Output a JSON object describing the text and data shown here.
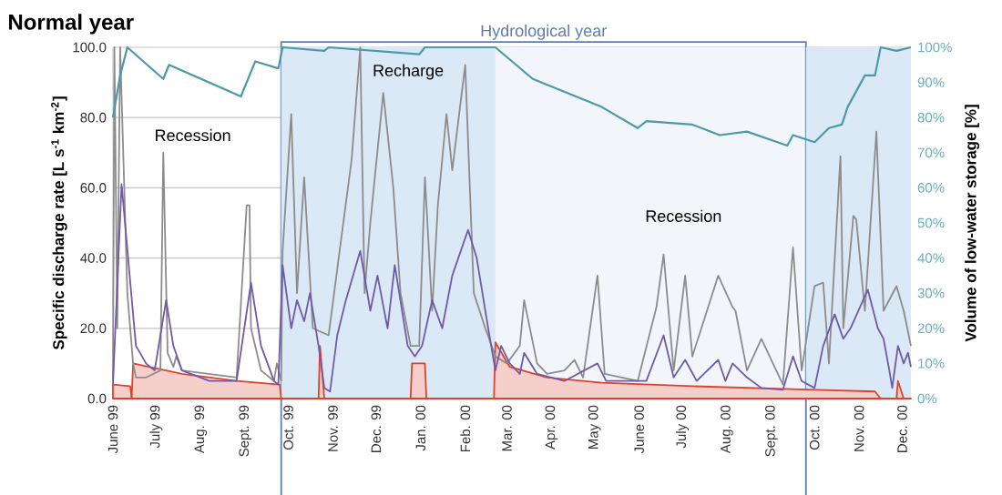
{
  "chart_data": {
    "type": "line",
    "title": "Normal year",
    "ylabel": "Specific discharge rate [L s$^{-1}$ km$^{-2}$]",
    "y2label": "Volume of low-water storage [%]",
    "annotations": [
      "Recession",
      "Recharge",
      "Recession"
    ],
    "xlim": [
      "1999-06-01",
      "2000-12-07"
    ],
    "xticks": [
      {
        "value": "1999-06-01",
        "label": "June 99"
      },
      {
        "value": "1999-07-01",
        "label": "July 99"
      },
      {
        "value": "1999-08-01",
        "label": "Aug. 99"
      },
      {
        "value": "1999-09-01",
        "label": "Sept. 99"
      },
      {
        "value": "1999-10-01",
        "label": "Oct. 99"
      },
      {
        "value": "1999-11-01",
        "label": "Nov. 99"
      },
      {
        "value": "1999-12-01",
        "label": "Dec. 99"
      },
      {
        "value": "2000-01-01",
        "label": "Jan. 00"
      },
      {
        "value": "2000-02-01",
        "label": "Feb. 00"
      },
      {
        "value": "2000-03-01",
        "label": "Mar. 00"
      },
      {
        "value": "2000-04-01",
        "label": "Apr. 00"
      },
      {
        "value": "2000-05-01",
        "label": "May 00"
      },
      {
        "value": "2000-06-01",
        "label": "June 00"
      },
      {
        "value": "2000-07-01",
        "label": "July 00"
      },
      {
        "value": "2000-08-01",
        "label": "Aug. 00"
      },
      {
        "value": "2000-09-01",
        "label": "Sept. 00"
      },
      {
        "value": "2000-10-01",
        "label": "Oct. 00"
      },
      {
        "value": "2000-11-01",
        "label": "Nov. 00"
      },
      {
        "value": "2000-12-01",
        "label": "Dec. 00"
      }
    ],
    "ylim": [
      0,
      100
    ],
    "yticks": [
      {
        "value": 0,
        "label": "0.0"
      },
      {
        "value": 20,
        "label": "20.0"
      },
      {
        "value": 40,
        "label": "40.0"
      },
      {
        "value": 60,
        "label": "60.0"
      },
      {
        "value": 80,
        "label": "80.0"
      },
      {
        "value": 100,
        "label": "100.0"
      }
    ],
    "y2lim": [
      0,
      100
    ],
    "y2ticks": [
      {
        "value": 0,
        "label": "0%"
      },
      {
        "value": 10,
        "label": "10%"
      },
      {
        "value": 20,
        "label": "20%"
      },
      {
        "value": 30,
        "label": "30%"
      },
      {
        "value": 40,
        "label": "40%"
      },
      {
        "value": 50,
        "label": "50%"
      },
      {
        "value": 60,
        "label": "60%"
      },
      {
        "value": 70,
        "label": "70%"
      },
      {
        "value": 80,
        "label": "80%"
      },
      {
        "value": 90,
        "label": "90%"
      },
      {
        "value": 100,
        "label": "100%"
      }
    ],
    "grid": "y",
    "marker": "none",
    "line_style": "solid",
    "bands": [
      {
        "axis": "x",
        "from": "1999-09-26",
        "to": "2000-02-22",
        "color": "#dbe8f5"
      },
      {
        "axis": "x",
        "from": "2000-09-25",
        "to": "2000-12-07",
        "color": "#dbe8f5"
      },
      {
        "axis": "x",
        "from": "1999-09-26",
        "to": "2000-09-25",
        "label": "Hydrological year",
        "color": "#f2f6fb"
      }
    ],
    "series": [
      {
        "type": "area",
        "color": "#e0412b",
        "x": [
          "1999-06-01",
          "1999-06-13",
          "1999-06-14",
          "1999-06-15",
          "1999-07-19",
          "1999-08-26",
          "1999-09-25",
          "1999-09-26",
          "1999-10-22",
          "1999-10-23",
          "1999-10-26",
          "1999-12-25",
          "1999-12-26",
          "2000-01-04",
          "2000-01-05",
          "2000-02-21",
          "2000-02-22",
          "2000-03-03",
          "2000-03-29",
          "2000-05-06",
          "2000-07-08",
          "2000-10-01",
          "2000-11-12",
          "2000-11-16",
          "2000-11-27",
          "2000-11-28",
          "2000-12-02",
          "2000-12-07"
        ],
        "values": [
          4,
          3.5,
          0,
          10,
          7,
          5,
          4,
          0,
          0,
          15,
          0,
          0,
          10,
          10,
          0,
          0,
          16,
          9,
          6,
          4.5,
          3.5,
          2.5,
          2,
          0,
          0,
          5,
          0,
          0
        ]
      },
      {
        "color": "#8c8c8c",
        "x": [
          "1999-06-01",
          "1999-06-02",
          "1999-06-04",
          "1999-06-06",
          "1999-06-11",
          "1999-06-15",
          "1999-06-17",
          "1999-06-24",
          "1999-07-04",
          "1999-07-06",
          "1999-07-09",
          "1999-07-13",
          "1999-07-15",
          "1999-07-19",
          "1999-08-07",
          "1999-08-26",
          "1999-09-02",
          "1999-09-04",
          "1999-09-05",
          "1999-09-12",
          "1999-09-21",
          "1999-09-23",
          "1999-09-26",
          "1999-09-27",
          "1999-10-03",
          "1999-10-07",
          "1999-10-12",
          "1999-10-18",
          "1999-10-29",
          "1999-11-05",
          "1999-11-14",
          "1999-11-20",
          "1999-11-23",
          "1999-11-27",
          "1999-12-06",
          "1999-12-13",
          "1999-12-18",
          "1999-12-25",
          "1999-12-31",
          "2000-01-04",
          "2000-01-09",
          "2000-01-13",
          "2000-01-19",
          "2000-01-23",
          "2000-02-01",
          "2000-02-07",
          "2000-02-15",
          "2000-02-22",
          "2000-03-01",
          "2000-03-10",
          "2000-03-13",
          "2000-03-22",
          "2000-03-29",
          "2000-04-10",
          "2000-04-17",
          "2000-04-23",
          "2000-05-03",
          "2000-05-08",
          "2000-05-31",
          "2000-06-13",
          "2000-06-18",
          "2000-06-25",
          "2000-07-03",
          "2000-07-08",
          "2000-07-26",
          "2000-08-05",
          "2000-08-07",
          "2000-08-15",
          "2000-08-25",
          "2000-09-09",
          "2000-09-16",
          "2000-09-22",
          "2000-10-01",
          "2000-10-07",
          "2000-10-11",
          "2000-10-19",
          "2000-10-21",
          "2000-10-28",
          "2000-10-30",
          "2000-11-05",
          "2000-11-13",
          "2000-11-18",
          "2000-11-27",
          "2000-12-02",
          "2000-12-07"
        ],
        "values": [
          5,
          100,
          20,
          100,
          30,
          10,
          6,
          6,
          8,
          70,
          13,
          9,
          12,
          8,
          7,
          6,
          55,
          55,
          20,
          8,
          5,
          10,
          5,
          42,
          81,
          30,
          63,
          20,
          18,
          40,
          68,
          100,
          30,
          50,
          87,
          60,
          30,
          15,
          15,
          63,
          25,
          55,
          81,
          65,
          95,
          30,
          20,
          12,
          10,
          15,
          28,
          10,
          7,
          8,
          11,
          6,
          35,
          7,
          5,
          26,
          41,
          8,
          35,
          12,
          35,
          26,
          25,
          8,
          17,
          4,
          43,
          8,
          32,
          33,
          10,
          69,
          20,
          52,
          51,
          25,
          76,
          25,
          32,
          25,
          15
        ]
      },
      {
        "color": "#6f5aa8",
        "x": [
          "1999-06-01",
          "1999-06-07",
          "1999-06-15",
          "1999-06-17",
          "1999-06-24",
          "1999-06-30",
          "1999-07-08",
          "1999-07-13",
          "1999-07-19",
          "1999-08-07",
          "1999-08-26",
          "1999-09-05",
          "1999-09-12",
          "1999-09-21",
          "1999-09-24",
          "1999-09-27",
          "1999-10-03",
          "1999-10-07",
          "1999-10-12",
          "1999-10-16",
          "1999-10-22",
          "1999-10-26",
          "1999-10-30",
          "1999-11-04",
          "1999-11-10",
          "1999-11-20",
          "1999-11-27",
          "1999-12-02",
          "1999-12-09",
          "1999-12-14",
          "1999-12-23",
          "1999-12-28",
          "2000-01-02",
          "2000-01-09",
          "2000-01-16",
          "2000-01-23",
          "2000-02-03",
          "2000-02-09",
          "2000-02-17",
          "2000-02-22",
          "2000-02-26",
          "2000-03-03",
          "2000-03-10",
          "2000-03-13",
          "2000-03-22",
          "2000-04-10",
          "2000-05-03",
          "2000-05-09",
          "2000-06-06",
          "2000-06-18",
          "2000-06-25",
          "2000-07-03",
          "2000-07-11",
          "2000-07-26",
          "2000-07-31",
          "2000-08-05",
          "2000-08-15",
          "2000-08-25",
          "2000-09-09",
          "2000-09-16",
          "2000-09-22",
          "2000-10-01",
          "2000-10-07",
          "2000-10-15",
          "2000-10-21",
          "2000-10-26",
          "2000-11-07",
          "2000-11-14",
          "2000-11-18",
          "2000-11-22",
          "2000-11-24",
          "2000-11-28",
          "2000-12-02",
          "2000-12-05",
          "2000-12-07"
        ],
        "values": [
          4,
          61,
          24,
          15,
          10,
          8,
          28,
          15,
          8,
          5,
          5,
          33,
          15,
          5,
          4,
          38,
          20,
          28,
          22,
          30,
          15,
          3,
          2,
          18,
          28,
          42,
          25,
          35,
          20,
          38,
          15,
          12,
          15,
          28,
          20,
          35,
          48,
          40,
          20,
          8,
          15,
          10,
          7,
          13,
          7,
          5,
          10,
          5,
          5,
          18,
          6,
          11,
          5,
          11,
          5,
          10,
          6,
          3,
          2.5,
          12,
          5,
          3,
          15,
          24,
          17,
          20,
          31,
          20,
          17,
          8,
          3,
          15,
          10,
          13,
          9
        ]
      },
      {
        "axis": "y2",
        "color": "#4a9aab",
        "x": [
          "1999-06-01",
          "1999-06-06",
          "1999-06-11",
          "1999-07-06",
          "1999-07-10",
          "1999-08-29",
          "1999-09-08",
          "1999-09-24",
          "1999-09-27",
          "1999-10-26",
          "1999-10-29",
          "1999-12-31",
          "2000-01-04",
          "2000-02-22",
          "2000-03-19",
          "2000-05-06",
          "2000-05-31",
          "2000-06-06",
          "2000-07-08",
          "2000-07-27",
          "2000-08-15",
          "2000-09-12",
          "2000-09-16",
          "2000-10-01",
          "2000-10-11",
          "2000-10-20",
          "2000-10-24",
          "2000-11-05",
          "2000-11-12",
          "2000-11-16",
          "2000-11-27",
          "2000-12-07"
        ],
        "values": [
          80,
          92,
          100,
          91,
          95,
          86,
          96,
          94,
          100,
          99,
          100,
          98,
          100,
          100,
          91,
          83,
          77,
          79,
          78,
          75,
          76,
          72,
          75,
          73,
          77,
          78,
          83,
          92,
          92,
          100,
          99,
          100
        ]
      }
    ]
  }
}
